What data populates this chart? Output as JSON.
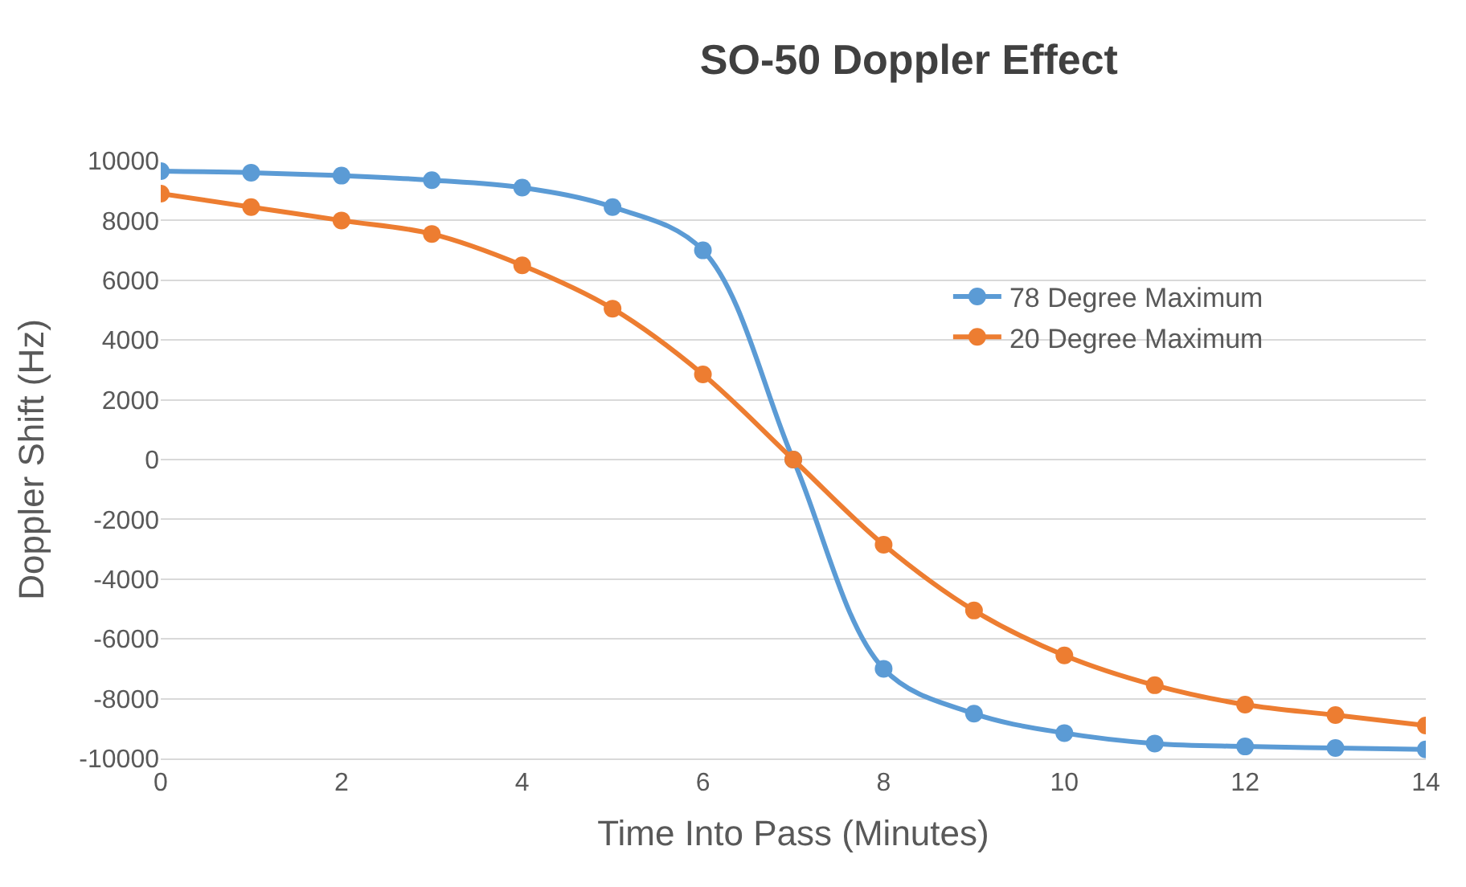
{
  "chart_data": {
    "type": "line",
    "title": "SO-50 Doppler Effect",
    "xlabel": "Time Into Pass (Minutes)",
    "ylabel": "Doppler Shift (Hz)",
    "x": [
      0,
      1,
      2,
      3,
      4,
      5,
      6,
      7,
      8,
      9,
      10,
      11,
      12,
      13,
      14
    ],
    "series": [
      {
        "name": "78 Degree Maximum",
        "color": "#5b9bd5",
        "values": [
          9650,
          9600,
          9500,
          9350,
          9100,
          8450,
          7000,
          0,
          -7000,
          -8500,
          -9150,
          -9500,
          -9600,
          -9650,
          -9700
        ]
      },
      {
        "name": "20 Degree Maximum",
        "color": "#ed7d31",
        "values": [
          8900,
          8450,
          8000,
          7550,
          6500,
          5050,
          2850,
          0,
          -2850,
          -5050,
          -6550,
          -7550,
          -8200,
          -8550,
          -8900
        ]
      }
    ],
    "xlim": [
      0,
      14
    ],
    "xticks": [
      0,
      2,
      4,
      6,
      8,
      10,
      12,
      14
    ],
    "ylim": [
      -10000,
      10000
    ],
    "yticks": [
      -10000,
      -8000,
      -6000,
      -4000,
      -2000,
      0,
      2000,
      4000,
      6000,
      8000,
      10000
    ],
    "grid": "y",
    "legend": "right",
    "marker": "circle",
    "line_style": "solid"
  }
}
